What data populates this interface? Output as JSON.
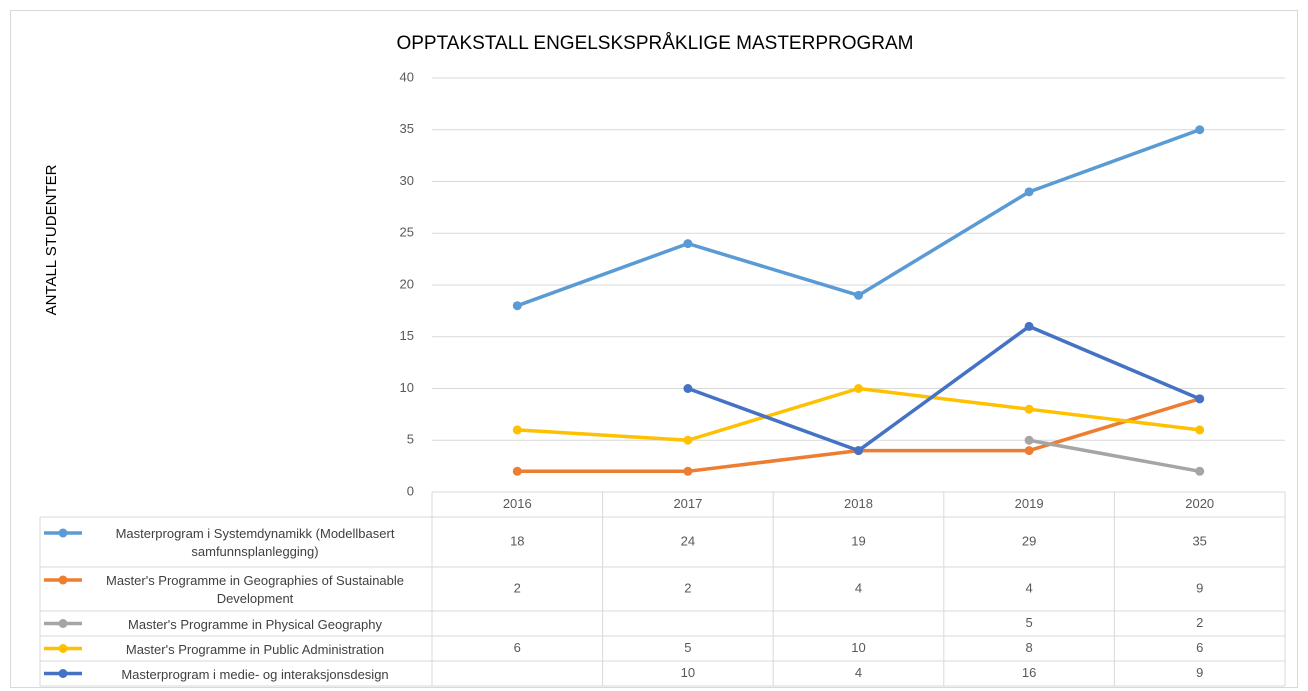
{
  "chart_data": {
    "type": "line",
    "title": "OPPTAKSTALL ENGELSKSPRÅKLIGE MASTERPROGRAM",
    "y_label": "ANTALL STUDENTER",
    "categories": [
      "2016",
      "2017",
      "2018",
      "2019",
      "2020"
    ],
    "series": [
      {
        "name": "Masterprogram i Systemdynamikk (Modellbasert samfunnsplanlegging)",
        "color": "#5b9bd5",
        "values": [
          18,
          24,
          19,
          29,
          35
        ]
      },
      {
        "name": "Master's Programme in Geographies of Sustainable Development",
        "color": "#ed7d31",
        "values": [
          2,
          2,
          4,
          4,
          9
        ]
      },
      {
        "name": "Master's Programme in Physical Geography",
        "color": "#a5a5a5",
        "values": [
          null,
          null,
          null,
          5,
          2
        ]
      },
      {
        "name": "Master's Programme in Public Administration",
        "color": "#ffc000",
        "values": [
          6,
          5,
          10,
          8,
          6
        ]
      },
      {
        "name": "Masterprogram i medie- og interaksjonsdesign",
        "color": "#4472c4",
        "values": [
          null,
          10,
          4,
          16,
          9
        ]
      }
    ],
    "ylim": [
      0,
      40
    ],
    "yticks": [
      0,
      5,
      10,
      15,
      20,
      25,
      30,
      35,
      40
    ],
    "grid": true,
    "data_table": true
  }
}
